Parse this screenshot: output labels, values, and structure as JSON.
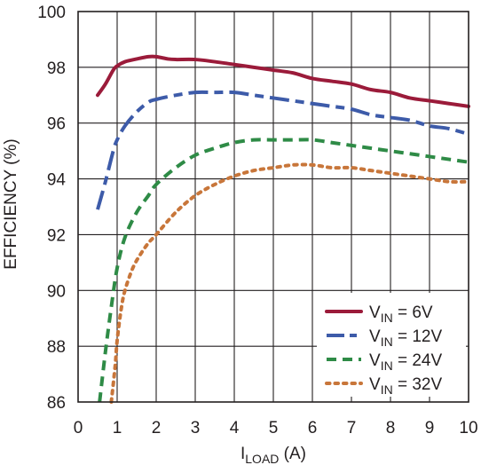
{
  "chart_data": {
    "type": "line",
    "title": "",
    "xlabel": {
      "main": "I",
      "sub": "LOAD",
      "unit": " (A)"
    },
    "ylabel": "EFFICIENCY (%)",
    "xlim": [
      0,
      10
    ],
    "ylim": [
      86,
      100
    ],
    "xticks": [
      0,
      1,
      2,
      3,
      4,
      5,
      6,
      7,
      8,
      9,
      10
    ],
    "yticks": [
      86,
      88,
      90,
      92,
      94,
      96,
      98,
      100
    ],
    "grid": true,
    "legend_position": "bottom-right",
    "series": [
      {
        "name": "V_IN = 6V",
        "label_main": "V",
        "label_sub": "IN",
        "label_rest": " = 6V",
        "color": "#9b1b3a",
        "dash": "solid",
        "x": [
          0.5,
          0.7,
          0.9,
          1.0,
          1.2,
          1.5,
          1.8,
          2.0,
          2.3,
          2.5,
          3.0,
          3.5,
          4.0,
          4.5,
          5.0,
          5.5,
          6.0,
          6.5,
          7.0,
          7.5,
          8.0,
          8.5,
          9.0,
          9.5,
          10.0
        ],
        "y": [
          97.0,
          97.4,
          97.9,
          98.05,
          98.2,
          98.3,
          98.38,
          98.38,
          98.3,
          98.28,
          98.28,
          98.2,
          98.1,
          98.0,
          97.9,
          97.8,
          97.6,
          97.5,
          97.4,
          97.2,
          97.1,
          96.9,
          96.8,
          96.7,
          96.6
        ]
      },
      {
        "name": "V_IN = 12V",
        "label_main": "V",
        "label_sub": "IN",
        "label_rest": " = 12V",
        "color": "#3d5ba9",
        "dash": "longdash",
        "x": [
          0.5,
          0.7,
          0.9,
          1.0,
          1.2,
          1.5,
          1.8,
          2.0,
          2.5,
          3.0,
          3.5,
          4.0,
          4.5,
          5.0,
          5.5,
          6.0,
          6.5,
          7.0,
          7.5,
          8.0,
          8.5,
          9.0,
          9.5,
          10.0
        ],
        "y": [
          92.9,
          93.9,
          95.0,
          95.4,
          95.9,
          96.4,
          96.75,
          96.85,
          97.0,
          97.1,
          97.1,
          97.1,
          97.0,
          96.9,
          96.8,
          96.7,
          96.6,
          96.5,
          96.3,
          96.2,
          96.1,
          95.9,
          95.8,
          95.6
        ]
      },
      {
        "name": "V_IN = 24V",
        "label_main": "V",
        "label_sub": "IN",
        "label_rest": " = 24V",
        "color": "#2e8b46",
        "dash": "dash",
        "x": [
          0.55,
          0.7,
          0.85,
          1.0,
          1.2,
          1.5,
          1.8,
          2.0,
          2.5,
          3.0,
          3.5,
          4.0,
          4.5,
          5.0,
          5.5,
          6.0,
          6.5,
          7.0,
          7.5,
          8.0,
          8.5,
          9.0,
          9.5,
          10.0
        ],
        "y": [
          86.0,
          87.8,
          89.4,
          90.8,
          91.9,
          92.8,
          93.4,
          93.8,
          94.4,
          94.85,
          95.1,
          95.3,
          95.4,
          95.4,
          95.4,
          95.4,
          95.3,
          95.2,
          95.1,
          95.0,
          94.9,
          94.8,
          94.7,
          94.6
        ]
      },
      {
        "name": "V_IN = 32V",
        "label_main": "V",
        "label_sub": "IN",
        "label_rest": " = 32V",
        "color": "#c8763a",
        "dash": "dot",
        "x": [
          0.85,
          0.95,
          1.0,
          1.1,
          1.2,
          1.4,
          1.6,
          1.8,
          2.0,
          2.5,
          3.0,
          3.5,
          4.0,
          4.5,
          5.0,
          5.5,
          6.0,
          6.5,
          7.0,
          7.5,
          8.0,
          8.5,
          9.0,
          9.5,
          10.0
        ],
        "y": [
          86.0,
          87.3,
          88.2,
          89.3,
          90.0,
          90.8,
          91.3,
          91.7,
          92.0,
          92.8,
          93.4,
          93.8,
          94.1,
          94.3,
          94.4,
          94.5,
          94.5,
          94.4,
          94.4,
          94.3,
          94.2,
          94.1,
          94.0,
          93.9,
          93.9
        ]
      }
    ]
  }
}
